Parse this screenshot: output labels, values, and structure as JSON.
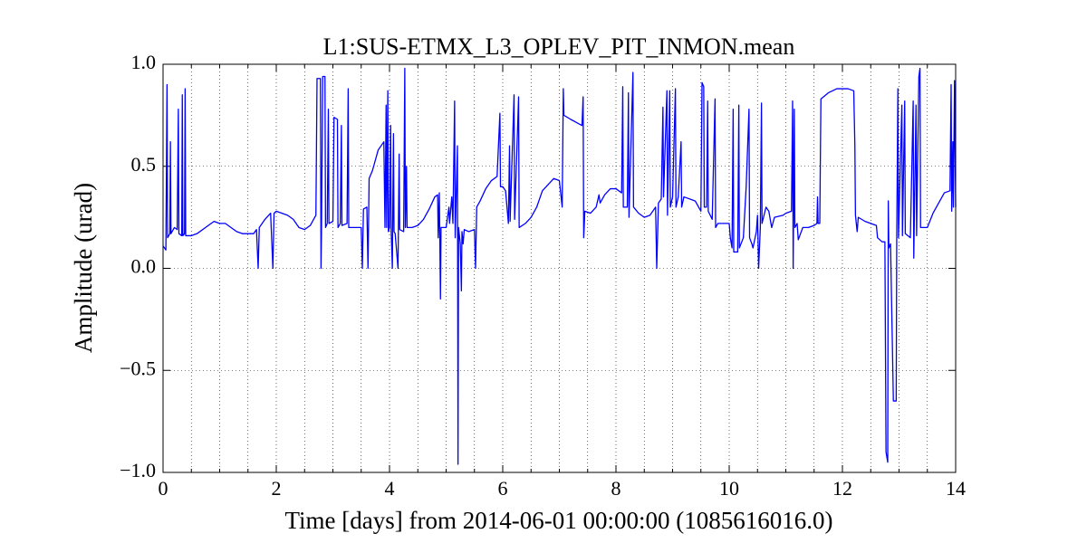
{
  "chart_data": {
    "type": "line",
    "title": "L1:SUS-ETMX_L3_OPLEV_PIT_INMON.mean",
    "xlabel": "Time [days] from 2014-06-01 00:00:00 (1085616016.0)",
    "ylabel": "Amplitude (urad)",
    "color": "#0000ff",
    "grid": true,
    "xlim": [
      0,
      14
    ],
    "xticks": [
      0,
      2,
      4,
      6,
      8,
      10,
      12,
      14
    ],
    "xminorticks": [
      0.5,
      1,
      1.5,
      2.5,
      3,
      3.5,
      4.5,
      5,
      5.5,
      6.5,
      7,
      7.5,
      8.5,
      9,
      9.5,
      10.5,
      11,
      11.5,
      12.5,
      13,
      13.5
    ],
    "ylim": [
      -1,
      1
    ],
    "yticks": [
      {
        "value": -1,
        "label": "−1.0"
      },
      {
        "value": -0.5,
        "label": "−0.5"
      },
      {
        "value": 0,
        "label": "0.0"
      },
      0.5,
      {
        "value": 1,
        "label": "1.0"
      }
    ],
    "x": [
      0,
      0.05,
      0.07,
      0.08,
      0.12,
      0.13,
      0.14,
      0.2,
      0.25,
      0.27,
      0.28,
      0.33,
      0.34,
      0.35,
      0.38,
      0.39,
      0.4,
      0.5,
      0.6,
      0.8,
      0.9,
      1.0,
      1.1,
      1.2,
      1.3,
      1.4,
      1.5,
      1.6,
      1.65,
      1.68,
      1.7,
      1.8,
      1.9,
      1.94,
      1.96,
      2.0,
      2.2,
      2.3,
      2.4,
      2.5,
      2.6,
      2.7,
      2.72,
      2.78,
      2.79,
      2.8,
      2.82,
      2.86,
      2.87,
      2.9,
      2.92,
      2.93,
      3.0,
      3.02,
      3.08,
      3.09,
      3.13,
      3.15,
      3.16,
      3.25,
      3.27,
      3.28,
      3.4,
      3.5,
      3.52,
      3.54,
      3.6,
      3.62,
      3.64,
      3.7,
      3.8,
      3.9,
      3.92,
      3.94,
      3.95,
      3.97,
      3.98,
      4.0,
      4.02,
      4.03,
      4.05,
      4.07,
      4.08,
      4.1,
      4.15,
      4.17,
      4.18,
      4.25,
      4.27,
      4.28,
      4.3,
      4.31,
      4.4,
      4.5,
      4.6,
      4.7,
      4.8,
      4.85,
      4.86,
      4.88,
      4.9,
      4.91,
      5.0,
      5.05,
      5.06,
      5.1,
      5.12,
      5.15,
      5.16,
      5.2,
      5.21,
      5.22,
      5.25,
      5.27,
      5.28,
      5.3,
      5.32,
      5.4,
      5.5,
      5.52,
      5.54,
      5.6,
      5.7,
      5.8,
      5.9,
      5.95,
      5.96,
      6.0,
      6.05,
      6.1,
      6.12,
      6.13,
      6.2,
      6.21,
      6.28,
      6.29,
      6.4,
      6.5,
      6.6,
      6.7,
      6.8,
      6.9,
      7.0,
      7.05,
      7.07,
      7.08,
      7.2,
      7.4,
      7.42,
      7.43,
      7.45,
      7.55,
      7.65,
      7.7,
      7.72,
      7.8,
      7.9,
      8.0,
      8.1,
      8.12,
      8.13,
      8.2,
      8.22,
      8.23,
      8.3,
      8.31,
      8.4,
      8.5,
      8.6,
      8.7,
      8.72,
      8.75,
      8.8,
      8.83,
      8.84,
      8.9,
      8.91,
      8.95,
      8.96,
      9.0,
      9.05,
      9.06,
      9.1,
      9.15,
      9.16,
      9.2,
      9.4,
      9.5,
      9.52,
      9.55,
      9.56,
      9.6,
      9.62,
      9.63,
      9.7,
      9.75,
      9.76,
      9.8,
      9.9,
      10.0,
      10.02,
      10.05,
      10.07,
      10.08,
      10.15,
      10.17,
      10.18,
      10.25,
      10.3,
      10.35,
      10.36,
      10.4,
      10.42,
      10.45,
      10.48,
      10.5,
      10.52,
      10.55,
      10.57,
      10.58,
      10.65,
      10.7,
      10.75,
      10.8,
      10.95,
      11.0,
      11.1,
      11.12,
      11.13,
      11.15,
      11.16,
      11.2,
      11.22,
      11.3,
      11.4,
      11.5,
      11.55,
      11.56,
      11.57,
      11.6,
      11.62,
      11.75,
      11.9,
      12.0,
      12.1,
      12.2,
      12.22,
      12.23,
      12.26,
      12.28,
      12.4,
      12.6,
      12.62,
      12.7,
      12.75,
      12.77,
      12.8,
      12.81,
      12.82,
      12.85,
      12.9,
      12.95,
      12.96,
      12.98,
      12.99,
      13.05,
      13.06,
      13.1,
      13.11,
      13.2,
      13.25,
      13.26,
      13.3,
      13.31,
      13.35,
      13.37,
      13.38,
      13.45,
      13.5,
      13.6,
      13.7,
      13.8,
      13.9,
      13.92,
      13.93,
      13.95,
      13.96,
      13.98,
      14.0
    ],
    "values": [
      0.11,
      0.09,
      0.9,
      0.15,
      0.17,
      0.62,
      0.17,
      0.2,
      0.19,
      0.78,
      0.17,
      0.16,
      0.85,
      0.16,
      0.17,
      0.88,
      0.16,
      0.16,
      0.17,
      0.21,
      0.23,
      0.22,
      0.22,
      0.2,
      0.18,
      0.17,
      0.17,
      0.17,
      0.19,
      0.0,
      0.2,
      0.24,
      0.27,
      0.0,
      0.27,
      0.28,
      0.26,
      0.24,
      0.2,
      0.19,
      0.21,
      0.26,
      0.93,
      0.93,
      0.0,
      0.22,
      0.94,
      0.94,
      0.2,
      0.22,
      0.78,
      0.22,
      0.23,
      0.74,
      0.73,
      0.2,
      0.22,
      0.7,
      0.21,
      0.22,
      0.88,
      0.2,
      0.2,
      0.2,
      0.0,
      0.29,
      0.3,
      0.0,
      0.44,
      0.48,
      0.58,
      0.62,
      0.2,
      0.8,
      0.2,
      0.87,
      0.18,
      0.2,
      0.7,
      0.18,
      0.0,
      0.66,
      0.18,
      0.17,
      0.0,
      0.56,
      0.19,
      0.18,
      0.98,
      0.2,
      0.5,
      0.2,
      0.2,
      0.21,
      0.24,
      0.29,
      0.35,
      0.36,
      0.15,
      0.37,
      -0.15,
      0.2,
      0.2,
      0.3,
      0.22,
      0.35,
      0.22,
      0.82,
      0.15,
      0.6,
      -0.96,
      0.2,
      0.12,
      -0.11,
      0.18,
      0.12,
      0.19,
      0.18,
      0.19,
      0.0,
      0.3,
      0.33,
      0.39,
      0.43,
      0.45,
      0.76,
      0.4,
      0.4,
      0.38,
      0.22,
      0.6,
      0.23,
      0.85,
      0.24,
      0.84,
      0.2,
      0.22,
      0.25,
      0.3,
      0.38,
      0.41,
      0.44,
      0.43,
      0.3,
      0.88,
      0.75,
      0.73,
      0.7,
      0.84,
      0.15,
      0.28,
      0.27,
      0.3,
      0.36,
      0.32,
      0.36,
      0.39,
      0.39,
      0.37,
      0.89,
      0.3,
      0.3,
      0.86,
      0.25,
      0.96,
      0.3,
      0.27,
      0.25,
      0.26,
      0.3,
      0.0,
      0.32,
      0.34,
      0.79,
      0.35,
      0.87,
      0.26,
      0.87,
      0.3,
      0.35,
      0.88,
      0.3,
      0.35,
      0.62,
      0.3,
      0.35,
      0.33,
      0.28,
      0.91,
      0.89,
      0.3,
      0.3,
      0.82,
      0.28,
      0.24,
      0.83,
      0.2,
      0.22,
      0.22,
      0.22,
      0.15,
      0.1,
      0.78,
      0.08,
      0.08,
      0.8,
      0.1,
      0.15,
      0.4,
      0.78,
      0.15,
      0.12,
      0.1,
      0.14,
      0.18,
      0.26,
      0.0,
      0.2,
      0.81,
      0.22,
      0.3,
      0.28,
      0.2,
      0.25,
      0.26,
      0.27,
      0.28,
      0.82,
      0.0,
      0.78,
      0.2,
      0.22,
      0.14,
      0.2,
      0.2,
      0.21,
      0.22,
      0.35,
      0.22,
      0.22,
      0.83,
      0.86,
      0.88,
      0.88,
      0.88,
      0.87,
      0.6,
      0.26,
      0.18,
      0.25,
      0.23,
      0.21,
      0.15,
      0.13,
      0.13,
      -0.9,
      -0.95,
      0.33,
      0.1,
      0.12,
      -0.65,
      -0.65,
      0.18,
      0.88,
      0.15,
      0.8,
      0.16,
      0.82,
      0.17,
      0.15,
      0.82,
      0.05,
      0.8,
      0.16,
      0.94,
      0.98,
      0.2,
      0.2,
      0.2,
      0.27,
      0.32,
      0.37,
      0.38,
      0.9,
      0.28,
      0.62,
      0.3,
      0.92,
      0.3
    ]
  }
}
